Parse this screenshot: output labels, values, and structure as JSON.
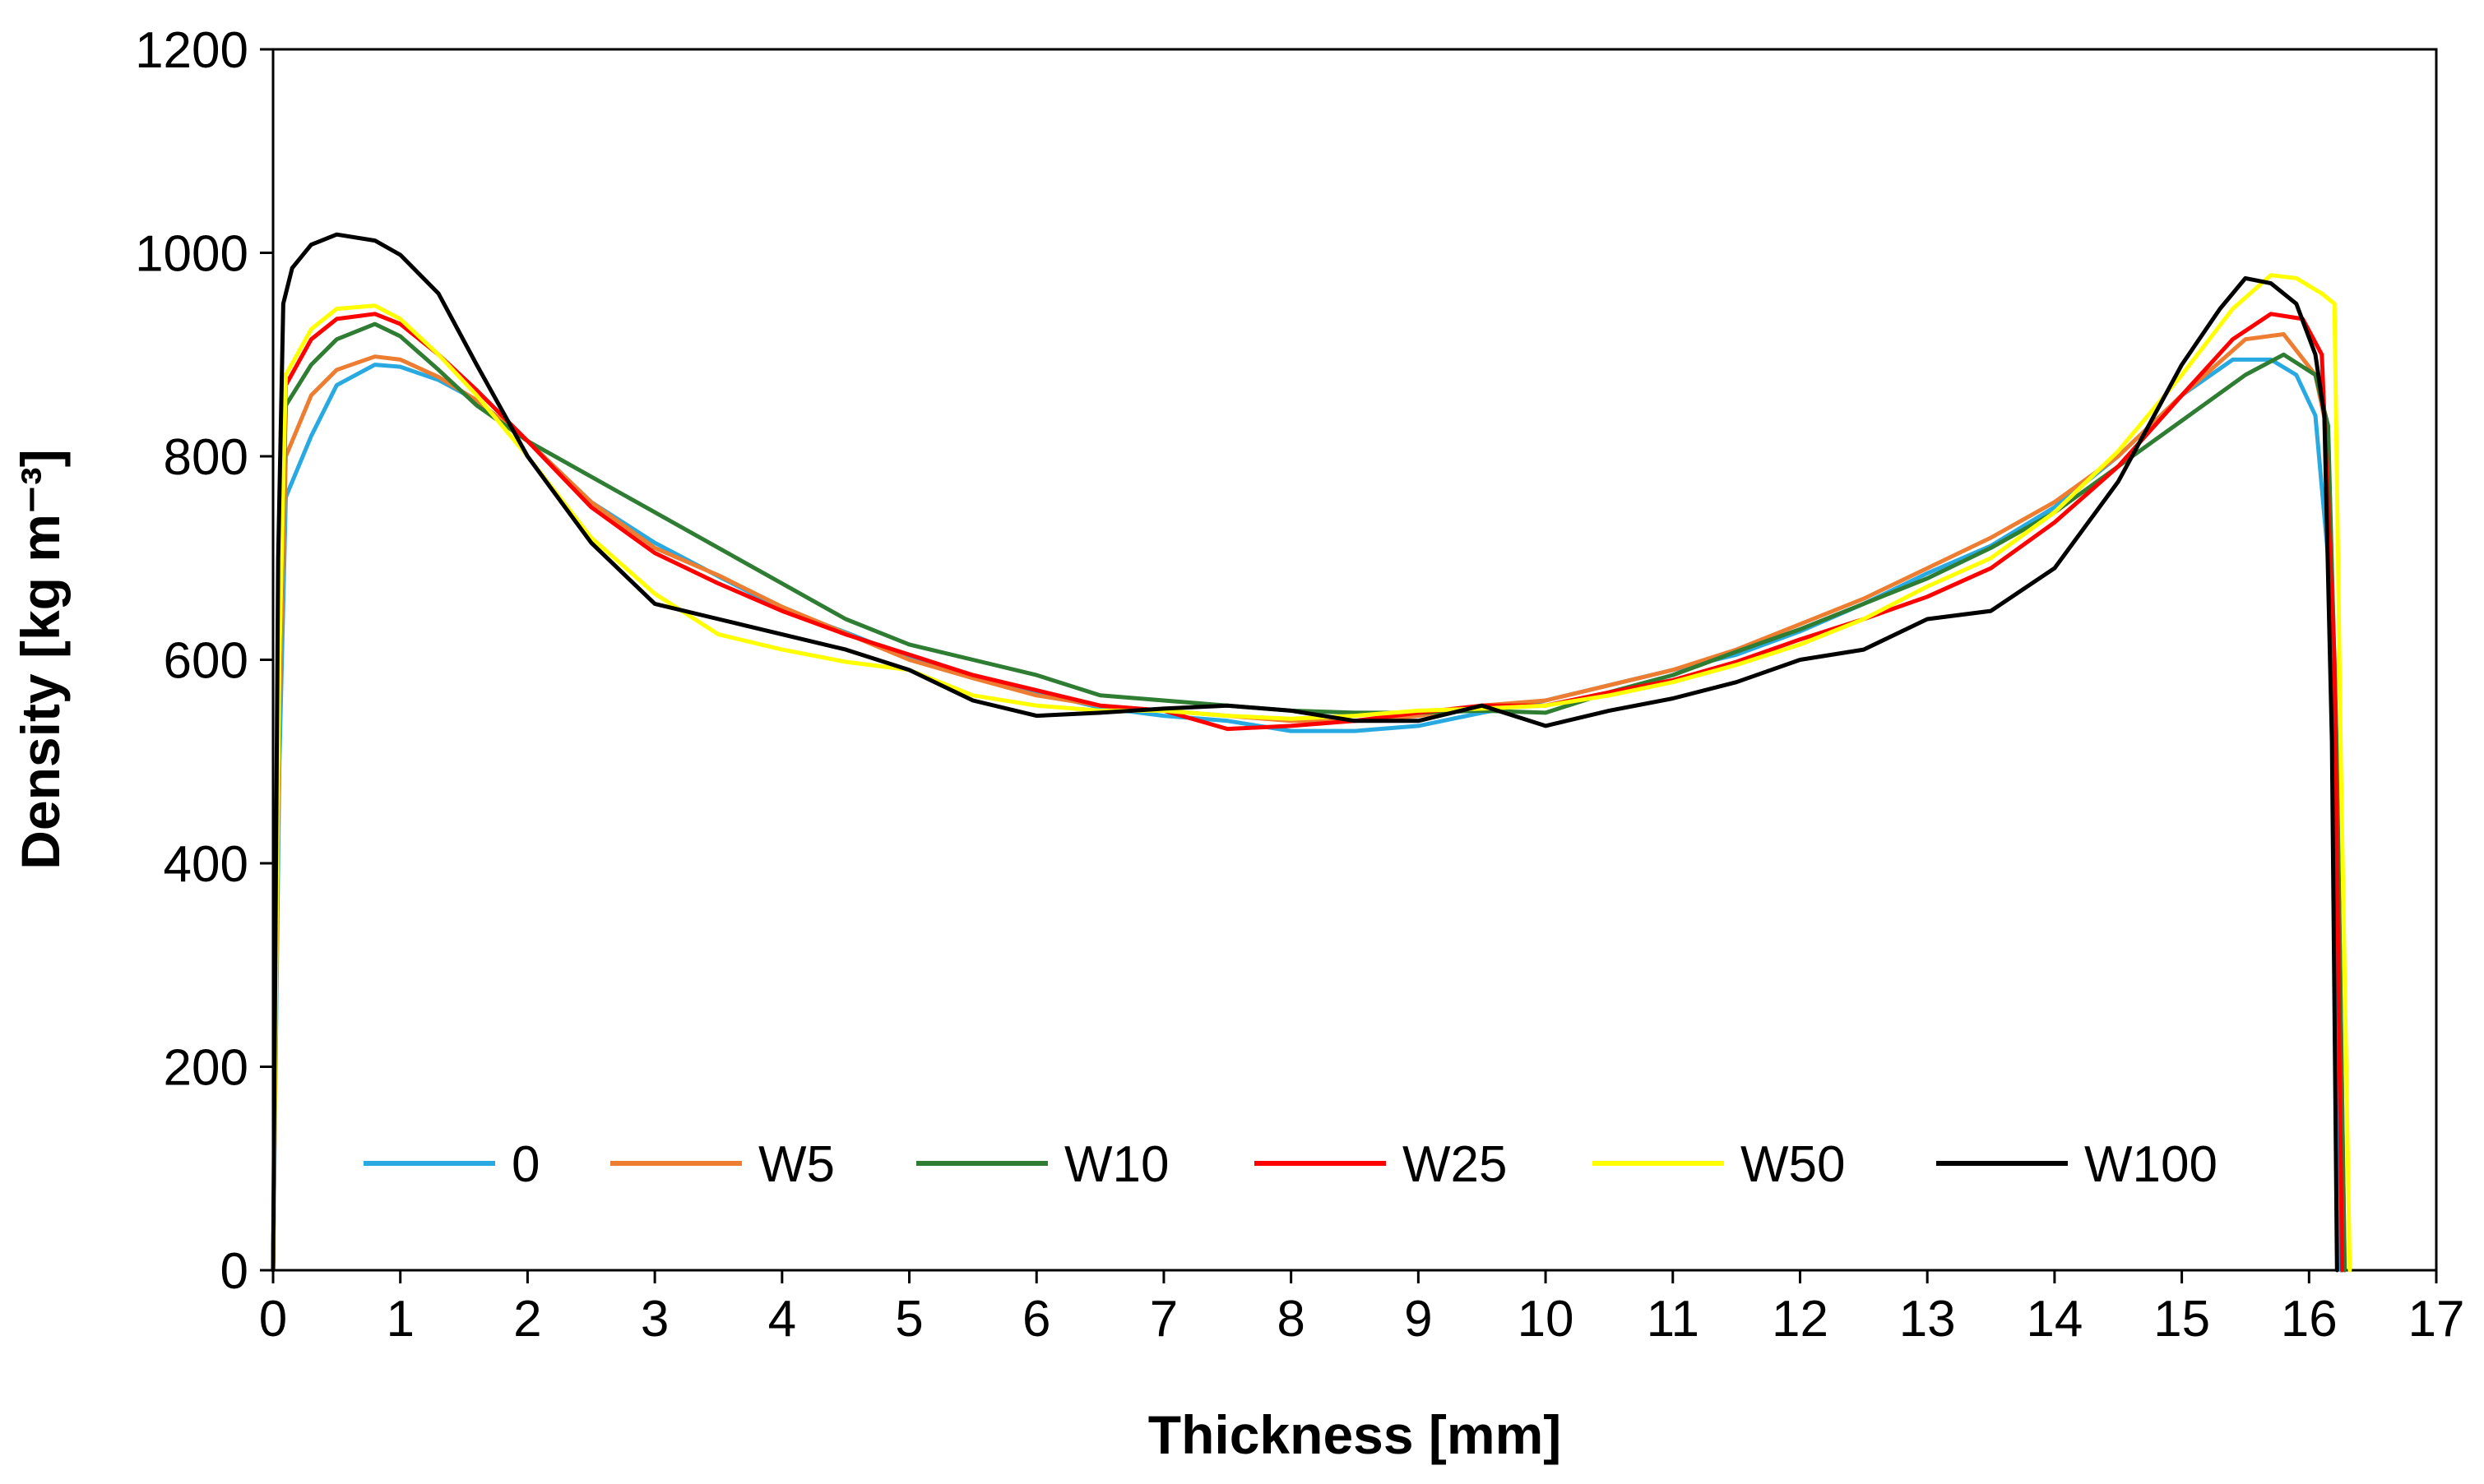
{
  "chart_data": {
    "type": "line",
    "title": "",
    "xlabel": "Thickness [mm]",
    "ylabel": "Density [kg m⁻³]",
    "xlim": [
      0,
      17
    ],
    "ylim": [
      0,
      1200
    ],
    "x_ticks": [
      0,
      1,
      2,
      3,
      4,
      5,
      6,
      7,
      8,
      9,
      10,
      11,
      12,
      13,
      14,
      15,
      16,
      17
    ],
    "y_ticks": [
      0,
      200,
      400,
      600,
      800,
      1000,
      1200
    ],
    "grid": false,
    "legend_position": "bottom-inside",
    "series": [
      {
        "name": "0",
        "color": "#29A9E1",
        "x": [
          0,
          0.05,
          0.1,
          0.3,
          0.5,
          0.8,
          1.0,
          1.3,
          1.6,
          2.0,
          2.5,
          3.0,
          3.5,
          4.0,
          4.5,
          5.0,
          5.5,
          6.0,
          6.5,
          7.0,
          7.5,
          8.0,
          8.5,
          9.0,
          9.5,
          10.0,
          10.5,
          11.0,
          11.5,
          12.0,
          12.5,
          13.0,
          13.5,
          14.0,
          14.5,
          15.0,
          15.4,
          15.7,
          15.9,
          16.05,
          16.15,
          16.2,
          16.25
        ],
        "y": [
          0,
          500,
          760,
          820,
          870,
          890,
          888,
          875,
          855,
          815,
          755,
          715,
          682,
          650,
          627,
          602,
          585,
          568,
          553,
          545,
          540,
          530,
          530,
          535,
          548,
          560,
          575,
          590,
          605,
          628,
          655,
          685,
          712,
          750,
          800,
          860,
          895,
          895,
          880,
          840,
          700,
          420,
          0
        ]
      },
      {
        "name": "W5",
        "color": "#ED7D31",
        "x": [
          0,
          0.05,
          0.1,
          0.3,
          0.5,
          0.8,
          1.0,
          1.3,
          1.6,
          2.0,
          2.5,
          3.0,
          3.5,
          4.0,
          4.5,
          5.0,
          5.5,
          6.0,
          6.5,
          7.0,
          7.5,
          8.0,
          8.5,
          9.0,
          9.5,
          10.0,
          10.5,
          11.0,
          11.5,
          12.0,
          12.5,
          13.0,
          13.5,
          14.0,
          14.5,
          15.0,
          15.5,
          15.8,
          16.05,
          16.15,
          16.22,
          16.28
        ],
        "y": [
          0,
          560,
          800,
          860,
          885,
          898,
          895,
          878,
          855,
          815,
          755,
          710,
          683,
          652,
          626,
          600,
          582,
          565,
          555,
          550,
          545,
          540,
          540,
          545,
          555,
          560,
          575,
          590,
          610,
          635,
          660,
          690,
          720,
          755,
          800,
          860,
          915,
          920,
          880,
          820,
          500,
          0
        ]
      },
      {
        "name": "W10",
        "color": "#2E7D32",
        "x": [
          0,
          0.05,
          0.1,
          0.3,
          0.5,
          0.8,
          1.0,
          1.3,
          1.6,
          2.0,
          2.5,
          3.0,
          3.5,
          4.0,
          4.5,
          5.0,
          5.5,
          6.0,
          6.5,
          7.0,
          7.5,
          8.0,
          8.5,
          9.0,
          9.5,
          10.0,
          10.5,
          11.0,
          11.5,
          12.0,
          12.5,
          13.0,
          13.5,
          14.0,
          14.5,
          15.0,
          15.5,
          15.8,
          16.05,
          16.15,
          16.22,
          16.28
        ],
        "y": [
          0,
          600,
          850,
          890,
          915,
          930,
          918,
          885,
          850,
          815,
          780,
          745,
          710,
          675,
          640,
          615,
          600,
          585,
          565,
          560,
          555,
          550,
          548,
          548,
          550,
          548,
          568,
          585,
          608,
          630,
          655,
          680,
          710,
          745,
          790,
          835,
          880,
          900,
          880,
          830,
          500,
          0
        ]
      },
      {
        "name": "W25",
        "color": "#FF0000",
        "x": [
          0,
          0.05,
          0.1,
          0.3,
          0.5,
          0.8,
          1.0,
          1.3,
          1.6,
          2.0,
          2.5,
          3.0,
          3.5,
          4.0,
          4.5,
          5.0,
          5.5,
          6.0,
          6.5,
          7.0,
          7.5,
          8.0,
          8.5,
          9.0,
          9.5,
          10.0,
          10.5,
          11.0,
          11.5,
          12.0,
          12.5,
          13.0,
          13.5,
          14.0,
          14.5,
          15.0,
          15.4,
          15.7,
          15.95,
          16.1,
          16.2,
          16.26
        ],
        "y": [
          0,
          600,
          870,
          915,
          935,
          940,
          930,
          900,
          865,
          815,
          750,
          705,
          675,
          648,
          625,
          605,
          585,
          570,
          555,
          550,
          532,
          535,
          540,
          548,
          555,
          555,
          568,
          580,
          598,
          620,
          640,
          662,
          690,
          735,
          790,
          860,
          915,
          940,
          935,
          900,
          600,
          0
        ]
      },
      {
        "name": "W50",
        "color": "#FFFF00",
        "x": [
          0,
          0.05,
          0.1,
          0.3,
          0.5,
          0.8,
          1.0,
          1.3,
          1.6,
          2.0,
          2.5,
          3.0,
          3.5,
          4.0,
          4.5,
          5.0,
          5.5,
          6.0,
          6.5,
          7.0,
          7.5,
          8.0,
          8.5,
          9.0,
          9.5,
          10.0,
          10.5,
          11.0,
          11.5,
          12.0,
          12.5,
          13.0,
          13.5,
          14.0,
          14.5,
          15.0,
          15.4,
          15.7,
          15.9,
          16.1,
          16.2,
          16.25,
          16.32
        ],
        "y": [
          0,
          600,
          880,
          925,
          945,
          948,
          935,
          900,
          860,
          800,
          720,
          665,
          625,
          610,
          598,
          590,
          565,
          555,
          550,
          550,
          545,
          542,
          545,
          550,
          552,
          555,
          565,
          578,
          595,
          615,
          640,
          672,
          700,
          745,
          805,
          880,
          945,
          978,
          975,
          960,
          950,
          500,
          0
        ]
      },
      {
        "name": "W100",
        "color": "#000000",
        "x": [
          0,
          0.04,
          0.08,
          0.15,
          0.3,
          0.5,
          0.8,
          1.0,
          1.3,
          1.6,
          2.0,
          2.5,
          3.0,
          3.5,
          4.0,
          4.5,
          5.0,
          5.5,
          6.0,
          6.5,
          7.0,
          7.5,
          8.0,
          8.5,
          9.0,
          9.5,
          10.0,
          10.5,
          11.0,
          11.5,
          12.0,
          12.5,
          13.0,
          13.5,
          14.0,
          14.5,
          15.0,
          15.3,
          15.5,
          15.7,
          15.9,
          16.05,
          16.12,
          16.18,
          16.22
        ],
        "y": [
          0,
          700,
          950,
          985,
          1008,
          1018,
          1012,
          998,
          960,
          890,
          800,
          715,
          655,
          640,
          625,
          610,
          590,
          560,
          545,
          548,
          552,
          555,
          550,
          540,
          540,
          555,
          535,
          550,
          562,
          578,
          600,
          610,
          640,
          648,
          690,
          775,
          890,
          945,
          975,
          970,
          950,
          900,
          840,
          520,
          0
        ]
      }
    ]
  }
}
